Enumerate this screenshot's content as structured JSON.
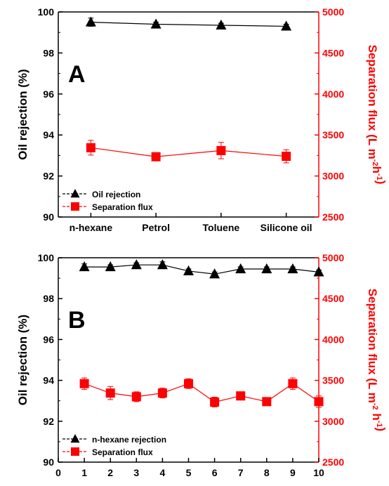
{
  "colors": {
    "rejection": "#000000",
    "flux": "#ff0000",
    "axis_left": "#000000",
    "axis_right": "#ff0000"
  },
  "chart_data": [
    {
      "type": "line",
      "panel_label": "A",
      "x_kind": "category",
      "categories": [
        "n-hexane",
        "Petrol",
        "Toluene",
        "Silicone oil"
      ],
      "ylabel": "Oil rejection (%)",
      "ylim": [
        90,
        100
      ],
      "yticks": [
        "90",
        "92",
        "94",
        "96",
        "98",
        "100"
      ],
      "y2label": "Separation flux (L m-2h-1)",
      "y2lim": [
        2500,
        5000
      ],
      "y2ticks": [
        "2500",
        "3000",
        "3500",
        "4000",
        "4500",
        "5000"
      ],
      "legend_position": "bottom-left",
      "series": [
        {
          "name": "Oil rejection",
          "axis": "left",
          "marker": "triangle",
          "values": [
            99.5,
            99.4,
            99.35,
            99.3
          ],
          "errors": [
            0.2,
            0.1,
            0.1,
            0.1
          ]
        },
        {
          "name": "Separation flux",
          "axis": "right",
          "marker": "square",
          "values": [
            3345,
            3235,
            3310,
            3240
          ],
          "errors": [
            90,
            40,
            100,
            80
          ]
        }
      ]
    },
    {
      "type": "line",
      "panel_label": "B",
      "x_kind": "numeric",
      "x": [
        1,
        2,
        3,
        4,
        5,
        6,
        7,
        8,
        9,
        10
      ],
      "xlim": [
        0,
        10
      ],
      "xticks": [
        "0",
        "1",
        "2",
        "3",
        "4",
        "5",
        "6",
        "7",
        "8",
        "9",
        "10"
      ],
      "ylabel": "Oil rejection (%)",
      "ylim": [
        90,
        100
      ],
      "yticks": [
        "90",
        "92",
        "94",
        "96",
        "98",
        "100"
      ],
      "y2label": "Separation flux (L m-2 h-1)",
      "y2lim": [
        2500,
        5000
      ],
      "y2ticks": [
        "2500",
        "3000",
        "3500",
        "4000",
        "4500",
        "5000"
      ],
      "legend_position": "bottom-left",
      "series": [
        {
          "name": "n-hexane rejection",
          "axis": "left",
          "marker": "triangle",
          "values": [
            99.55,
            99.55,
            99.65,
            99.65,
            99.35,
            99.2,
            99.45,
            99.45,
            99.45,
            99.3
          ],
          "errors": [
            0.15,
            0.1,
            0.1,
            0.15,
            0.1,
            0.1,
            0.1,
            0.1,
            0.1,
            0.1
          ]
        },
        {
          "name": "Separation flux",
          "axis": "right",
          "marker": "square",
          "values": [
            3460,
            3345,
            3300,
            3345,
            3460,
            3235,
            3310,
            3240,
            3460,
            3240
          ],
          "errors": [
            70,
            80,
            60,
            60,
            60,
            60,
            50,
            30,
            70,
            70
          ]
        }
      ]
    }
  ]
}
